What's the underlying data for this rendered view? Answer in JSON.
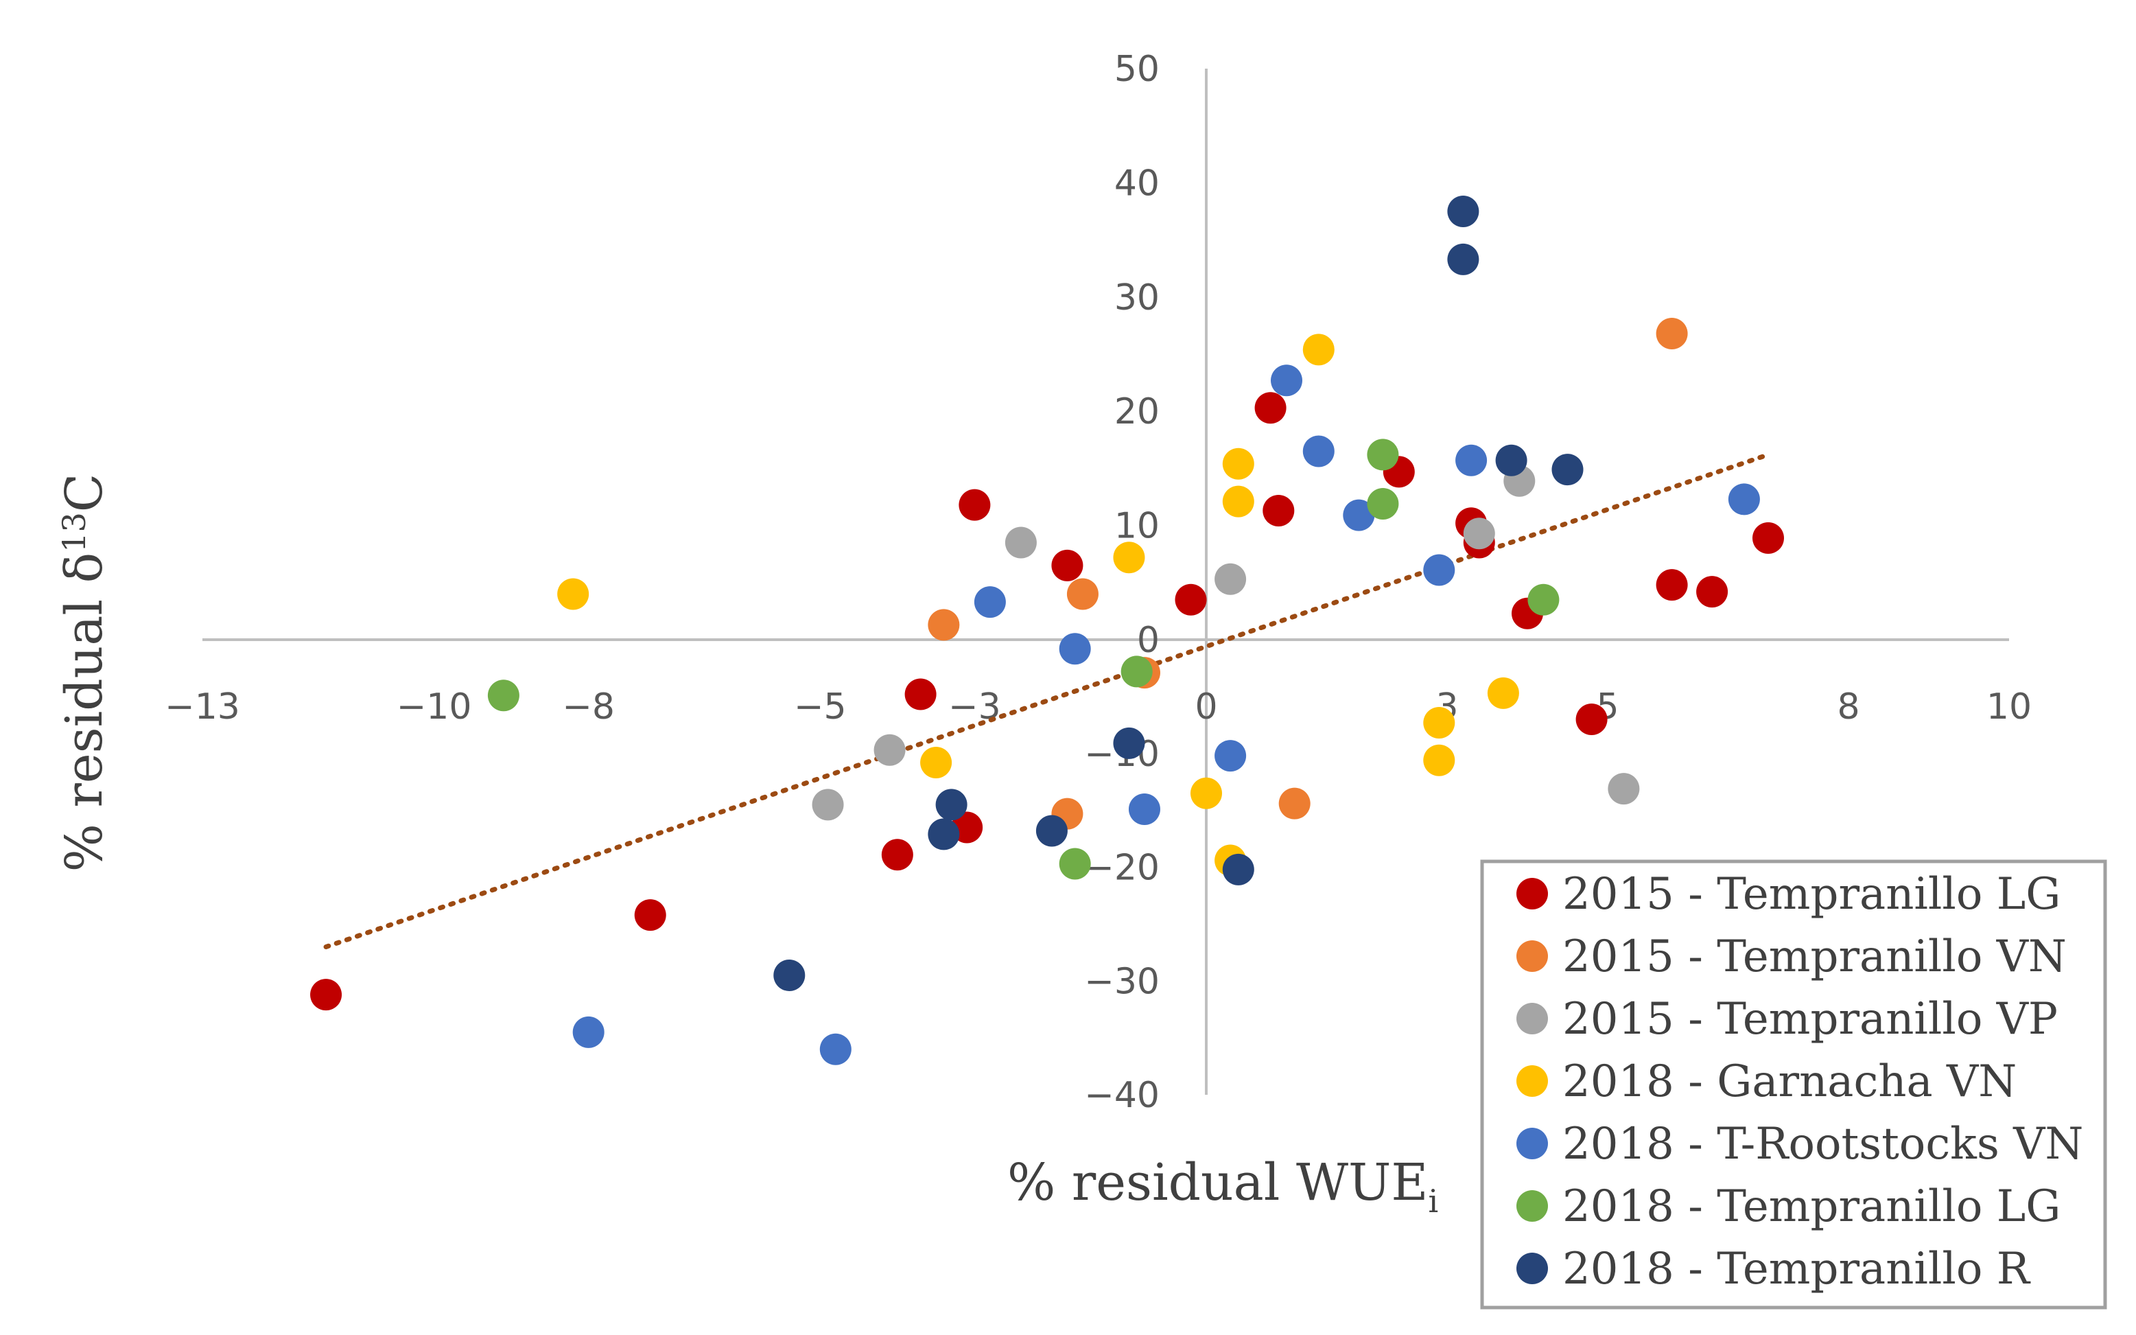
{
  "chart_data": {
    "type": "scatter",
    "title": "",
    "xlabel": "% residual WUE",
    "xlabel_sub": "i",
    "ylabel": "% residual δ",
    "ylabel_sup": "13",
    "ylabel_tail": "C",
    "xlim": [
      -13,
      10
    ],
    "ylim": [
      -40,
      50
    ],
    "x_ticks": [
      -13,
      -10,
      -8,
      -5,
      -3,
      0,
      3,
      5,
      8,
      10
    ],
    "y_ticks": [
      -40,
      -30,
      -20,
      -10,
      0,
      10,
      20,
      30,
      40,
      50
    ],
    "x_tick_labels": [
      "−13",
      "−10",
      "−8",
      "−5",
      "−3",
      "0",
      "3",
      "5",
      "8",
      "10"
    ],
    "y_tick_labels": [
      "−40",
      "−30",
      "−20",
      "−10",
      "0",
      "10",
      "20",
      "30",
      "40",
      "50"
    ],
    "legend_position": "bottom-right",
    "trendline": {
      "type": "linear",
      "color": "#9C4A12",
      "x": [
        -11.4,
        7.0
      ],
      "y": [
        -27,
        16.2
      ]
    },
    "series": [
      {
        "name": "2015 - Tempranillo LG",
        "color": "#C00000",
        "points": [
          [
            -11.4,
            -31.2
          ],
          [
            -7.2,
            -24.2
          ],
          [
            -4.0,
            -18.9
          ],
          [
            -3.1,
            -16.5
          ],
          [
            -3.7,
            -4.8
          ],
          [
            -3.0,
            11.8
          ],
          [
            -1.8,
            6.5
          ],
          [
            -0.2,
            3.5
          ],
          [
            0.8,
            20.3
          ],
          [
            0.9,
            11.3
          ],
          [
            2.4,
            14.7
          ],
          [
            3.3,
            10.2
          ],
          [
            3.4,
            8.5
          ],
          [
            4.0,
            2.3
          ],
          [
            4.8,
            -7.0
          ],
          [
            5.8,
            4.8
          ],
          [
            6.3,
            4.2
          ],
          [
            7.0,
            8.9
          ]
        ]
      },
      {
        "name": "2015 - Tempranillo VN",
        "color": "#ED7D31",
        "points": [
          [
            -3.4,
            1.3
          ],
          [
            -1.6,
            4.0
          ],
          [
            -0.8,
            -2.9
          ],
          [
            -1.8,
            -15.3
          ],
          [
            1.1,
            -14.4
          ],
          [
            5.8,
            26.8
          ]
        ]
      },
      {
        "name": "2015 - Tempranillo VP",
        "color": "#A5A5A5",
        "points": [
          [
            -4.9,
            -14.5
          ],
          [
            -4.1,
            -9.7
          ],
          [
            -2.4,
            8.5
          ],
          [
            3.4,
            9.3
          ],
          [
            3.9,
            13.9
          ],
          [
            5.2,
            -13.1
          ],
          [
            0.3,
            5.3
          ]
        ]
      },
      {
        "name": "2018 - Garnacha VN",
        "color": "#FFC000",
        "points": [
          [
            -8.2,
            4.0
          ],
          [
            -3.5,
            -10.8
          ],
          [
            -1.0,
            7.2
          ],
          [
            0.0,
            -13.5
          ],
          [
            0.3,
            -19.4
          ],
          [
            0.4,
            15.4
          ],
          [
            0.4,
            12.1
          ],
          [
            1.4,
            25.4
          ],
          [
            2.9,
            -7.3
          ],
          [
            2.9,
            -10.6
          ],
          [
            3.7,
            -4.7
          ]
        ]
      },
      {
        "name": "2018 - T-Rootstocks VN",
        "color": "#4472C4",
        "points": [
          [
            -8.0,
            -34.5
          ],
          [
            -4.8,
            -36.0
          ],
          [
            -2.8,
            3.3
          ],
          [
            -1.7,
            -0.8
          ],
          [
            -0.8,
            -14.9
          ],
          [
            0.3,
            -10.2
          ],
          [
            1.0,
            22.7
          ],
          [
            1.4,
            16.5
          ],
          [
            1.9,
            10.9
          ],
          [
            2.9,
            6.1
          ],
          [
            3.3,
            15.7
          ],
          [
            6.7,
            12.3
          ]
        ]
      },
      {
        "name": "2018 - Tempranillo LG",
        "color": "#70AD47",
        "points": [
          [
            -9.1,
            -4.9
          ],
          [
            -0.9,
            -2.8
          ],
          [
            -1.7,
            -19.7
          ],
          [
            2.2,
            11.9
          ],
          [
            2.2,
            16.2
          ],
          [
            4.2,
            3.5
          ]
        ]
      },
      {
        "name": "2018 - Tempranillo R",
        "color": "#264478",
        "points": [
          [
            -5.4,
            -29.5
          ],
          [
            -3.4,
            -17.1
          ],
          [
            -3.3,
            -14.5
          ],
          [
            -2.0,
            -16.8
          ],
          [
            -1.0,
            -9.1
          ],
          [
            0.4,
            -20.2
          ],
          [
            3.2,
            37.5
          ],
          [
            3.2,
            33.3
          ],
          [
            3.8,
            15.7
          ],
          [
            4.5,
            14.9
          ]
        ]
      }
    ]
  }
}
